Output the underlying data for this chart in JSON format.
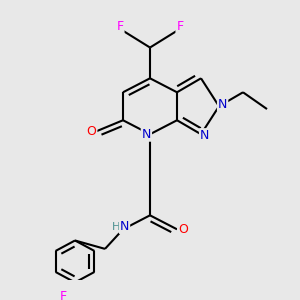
{
  "background_color": "#e8e8e8",
  "atom_colors": {
    "F": "#ff00ff",
    "N": "#0000cc",
    "O": "#ff0000",
    "H": "#4a9090",
    "C": "#000000"
  },
  "bond_color": "#000000",
  "bond_width": 1.5
}
